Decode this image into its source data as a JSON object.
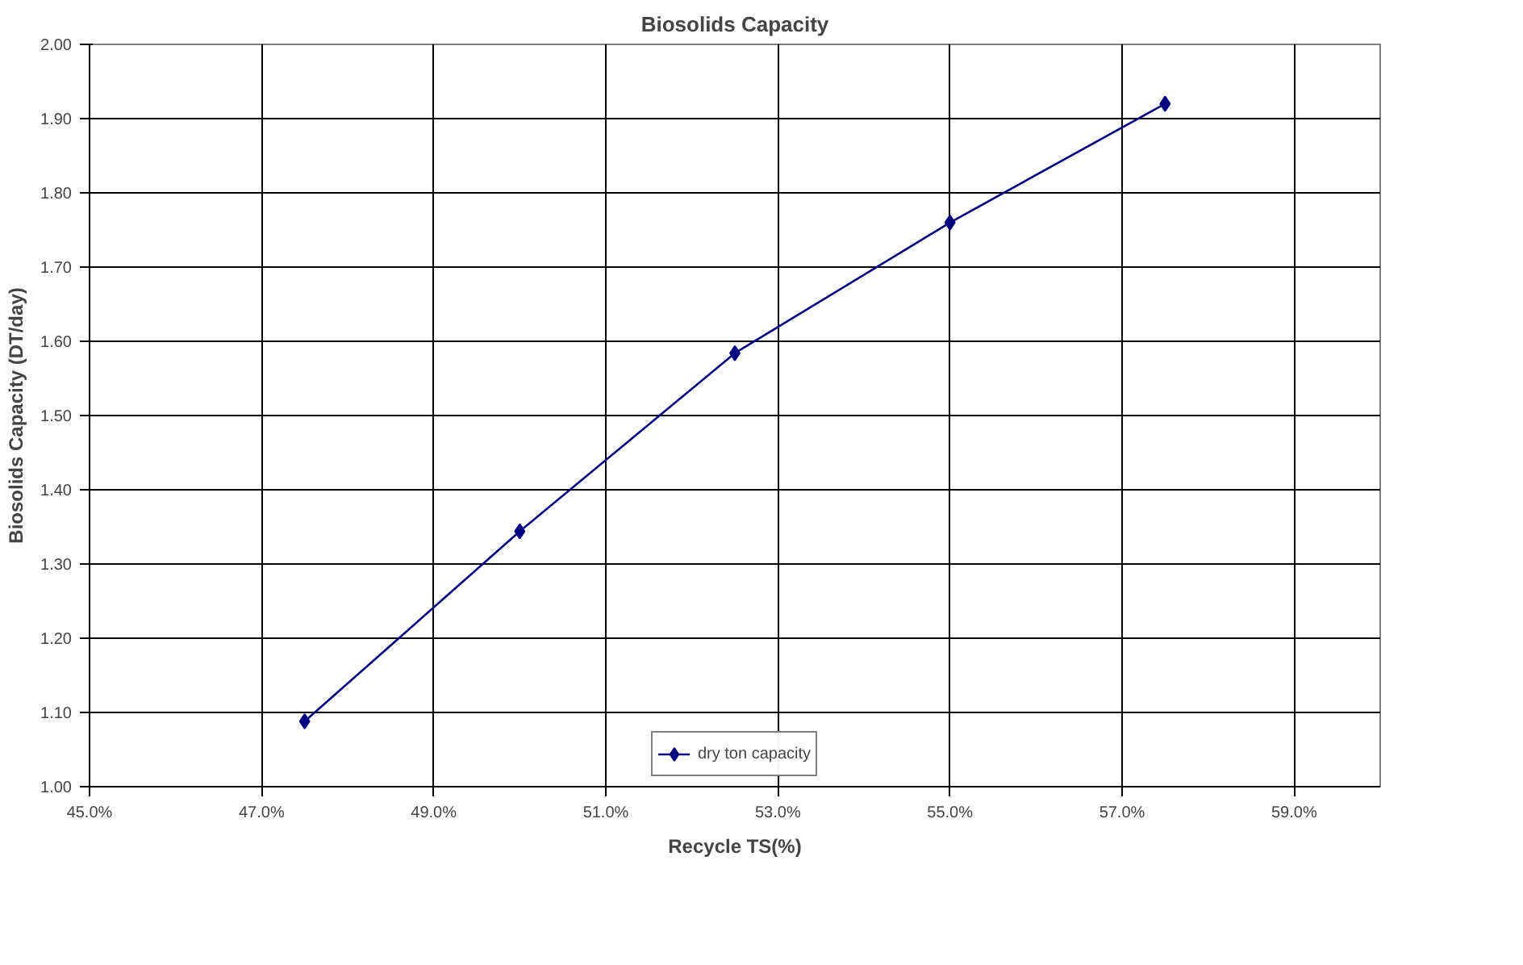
{
  "chart_data": {
    "type": "line",
    "title": "Biosolids Capacity",
    "xlabel": "Recycle TS(%)",
    "ylabel": "Biosolids Capacity (DT/day)",
    "x": [
      47.5,
      50.0,
      52.5,
      55.0,
      57.5
    ],
    "series": [
      {
        "name": "dry ton capacity",
        "color": "#000080",
        "values": [
          1.088,
          1.344,
          1.584,
          1.76,
          1.92
        ]
      }
    ],
    "xlim": [
      45,
      60
    ],
    "xticks": [
      {
        "value": 45,
        "label": "45.0%"
      },
      {
        "value": 47,
        "label": "47.0%"
      },
      {
        "value": 49,
        "label": "49.0%"
      },
      {
        "value": 51,
        "label": "51.0%"
      },
      {
        "value": 53,
        "label": "53.0%"
      },
      {
        "value": 55,
        "label": "55.0%"
      },
      {
        "value": 57,
        "label": "57.0%"
      },
      {
        "value": 59,
        "label": "59.0%"
      }
    ],
    "ylim": [
      1.0,
      2.0
    ],
    "yticks": [
      {
        "value": 1.0,
        "label": "1.00"
      },
      {
        "value": 1.1,
        "label": "1.10"
      },
      {
        "value": 1.2,
        "label": "1.20"
      },
      {
        "value": 1.3,
        "label": "1.30"
      },
      {
        "value": 1.4,
        "label": "1.40"
      },
      {
        "value": 1.5,
        "label": "1.50"
      },
      {
        "value": 1.6,
        "label": "1.60"
      },
      {
        "value": 1.7,
        "label": "1.70"
      },
      {
        "value": 1.8,
        "label": "1.80"
      },
      {
        "value": 1.9,
        "label": "1.90"
      },
      {
        "value": 2.0,
        "label": "2.00"
      }
    ],
    "grid": true,
    "legend": "bottom",
    "marker": "diamond",
    "line_style": "solid"
  }
}
